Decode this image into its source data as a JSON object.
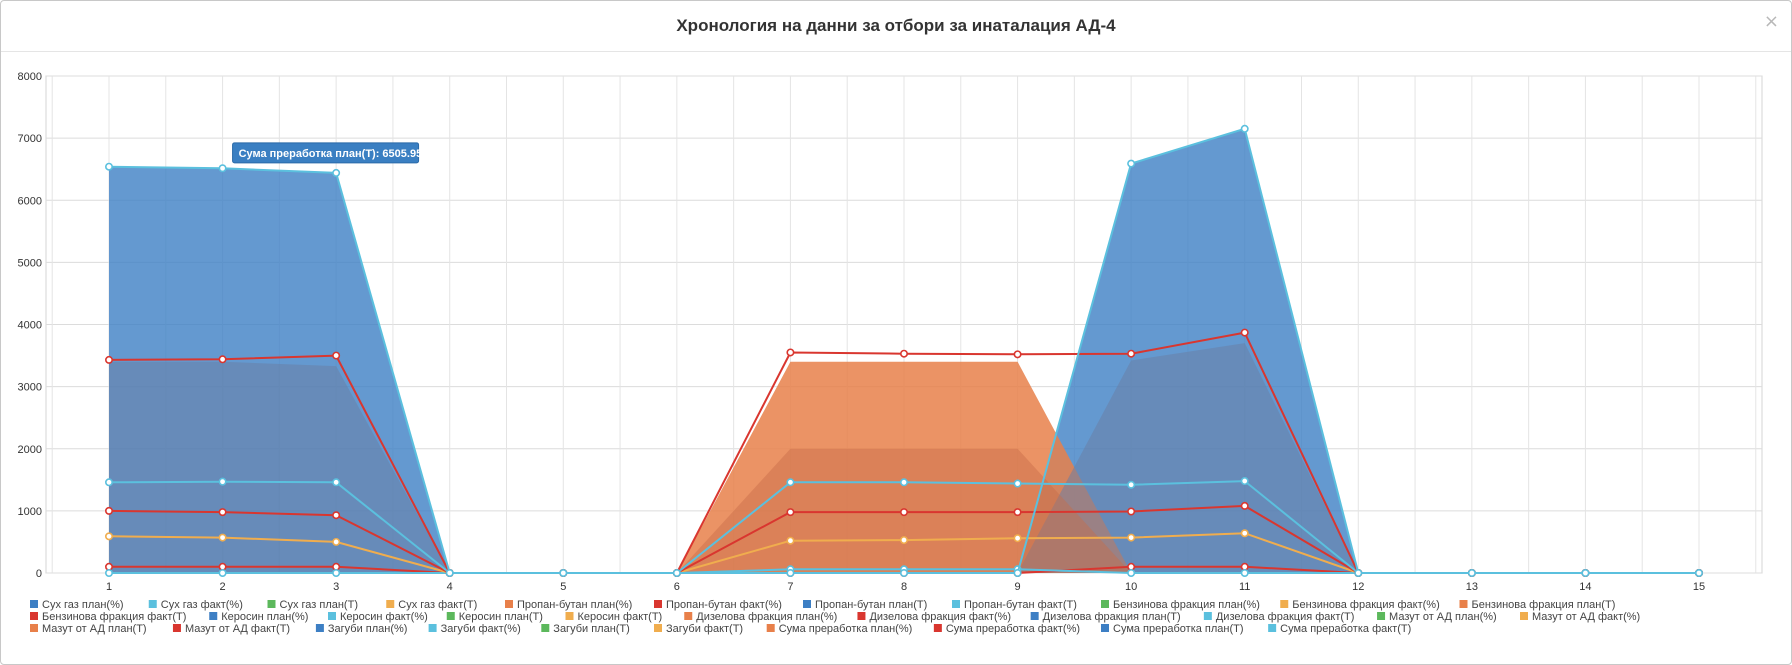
{
  "modal": {
    "title": "Хронология на данни за отбори за инаталация АД-4",
    "close_icon": "close-icon",
    "close_glyph": "×"
  },
  "tooltip": {
    "text": "Сума преработка план(Т): 6505.95",
    "series": "Сума преработка план(Т)",
    "x": 2,
    "value": 6505.95,
    "color": "#3a7fc2"
  },
  "chart_data": {
    "type": "area",
    "x": [
      1,
      2,
      3,
      4,
      5,
      6,
      7,
      8,
      9,
      10,
      11,
      12,
      13,
      14,
      15
    ],
    "xlim": [
      1,
      15
    ],
    "ylim": [
      0,
      8000
    ],
    "yticks": [
      0,
      1000,
      2000,
      3000,
      4000,
      5000,
      6000,
      7000,
      8000
    ],
    "grid": true,
    "legend_position": "bottom",
    "series": [
      {
        "name": "Сух газ план(%)",
        "color": "#3d7fc4",
        "values": [
          0,
          0,
          0,
          0,
          0,
          0,
          0,
          0,
          0,
          0,
          0,
          0,
          0,
          0,
          0
        ]
      },
      {
        "name": "Сух газ факт(%)",
        "color": "#5bc0de",
        "values": [
          0,
          0,
          0,
          0,
          0,
          0,
          0,
          0,
          0,
          0,
          0,
          0,
          0,
          0,
          0
        ]
      },
      {
        "name": "Сух газ план(Т)",
        "color": "#5cb85c",
        "values": [
          0,
          0,
          0,
          0,
          0,
          0,
          0,
          0,
          0,
          0,
          0,
          0,
          0,
          0,
          0
        ]
      },
      {
        "name": "Сух газ факт(Т)",
        "color": "#f0ad4e",
        "values": [
          0,
          0,
          0,
          0,
          0,
          0,
          0,
          0,
          0,
          0,
          0,
          0,
          0,
          0,
          0
        ]
      },
      {
        "name": "Пропан-бутан план(%)",
        "color": "#e8804a",
        "values": [
          0,
          0,
          0,
          0,
          0,
          0,
          0,
          0,
          0,
          0,
          0,
          0,
          0,
          0,
          0
        ]
      },
      {
        "name": "Пропан-бутан факт(%)",
        "color": "#d9362f",
        "values": [
          0,
          0,
          0,
          0,
          0,
          0,
          0,
          0,
          0,
          0,
          0,
          0,
          0,
          0,
          0
        ]
      },
      {
        "name": "Пропан-бутан план(Т)",
        "color": "#3d7fc4",
        "values": [
          0,
          0,
          0,
          0,
          0,
          0,
          0,
          0,
          0,
          0,
          0,
          0,
          0,
          0,
          0
        ]
      },
      {
        "name": "Пропан-бутан факт(Т)",
        "color": "#5bc0de",
        "values": [
          0,
          0,
          0,
          0,
          0,
          0,
          0,
          0,
          0,
          0,
          0,
          0,
          0,
          0,
          0
        ]
      },
      {
        "name": "Бензинова фракция план(%)",
        "color": "#5cb85c",
        "values": [
          0,
          0,
          0,
          0,
          0,
          0,
          0,
          0,
          0,
          0,
          0,
          0,
          0,
          0,
          0
        ]
      },
      {
        "name": "Бензинова фракция факт(%)",
        "color": "#f0ad4e",
        "values": [
          0,
          0,
          0,
          0,
          0,
          0,
          0,
          0,
          0,
          0,
          0,
          0,
          0,
          0,
          0
        ]
      },
      {
        "name": "Бензинова фракция план(Т)",
        "color": "#e8804a",
        "values": [
          0,
          0,
          0,
          0,
          0,
          0,
          0,
          0,
          0,
          0,
          0,
          0,
          0,
          0,
          0
        ]
      },
      {
        "name": "Бензинова фракция факт(Т)",
        "color": "#d9362f",
        "values": [
          0,
          0,
          0,
          0,
          0,
          0,
          0,
          0,
          0,
          0,
          0,
          0,
          0,
          0,
          0
        ]
      },
      {
        "name": "Керосин план(%)",
        "color": "#3d7fc4",
        "values": [
          0,
          0,
          0,
          0,
          0,
          0,
          0,
          0,
          0,
          0,
          0,
          0,
          0,
          0,
          0
        ]
      },
      {
        "name": "Керосин факт(%)",
        "color": "#5bc0de",
        "values": [
          0,
          0,
          0,
          0,
          0,
          0,
          0,
          0,
          0,
          0,
          0,
          0,
          0,
          0,
          0
        ]
      },
      {
        "name": "Керосин план(Т)",
        "color": "#5cb85c",
        "values": [
          0,
          0,
          0,
          0,
          0,
          0,
          0,
          0,
          0,
          0,
          0,
          0,
          0,
          0,
          0
        ]
      },
      {
        "name": "Керосин факт(Т)",
        "color": "#f0ad4e",
        "values": [
          0,
          0,
          0,
          0,
          0,
          0,
          0,
          0,
          0,
          0,
          0,
          0,
          0,
          0,
          0
        ]
      },
      {
        "name": "Дизелова фракция план(%)",
        "color": "#e8804a",
        "values": [
          0,
          0,
          0,
          0,
          0,
          0,
          0,
          0,
          0,
          0,
          0,
          0,
          0,
          0,
          0
        ]
      },
      {
        "name": "Дизелова фракция факт(%)",
        "color": "#d9362f",
        "values": [
          0,
          0,
          0,
          0,
          0,
          0,
          0,
          0,
          0,
          0,
          0,
          0,
          0,
          0,
          0
        ]
      },
      {
        "name": "Дизелова фракция план(Т)",
        "color": "#3d7fc4",
        "values": [
          1450,
          1450,
          1450,
          0,
          0,
          0,
          0,
          0,
          0,
          1400,
          1450,
          0,
          0,
          0,
          0
        ]
      },
      {
        "name": "Дизелова фракция факт(Т)",
        "color": "#5bc0de",
        "values": [
          1460,
          1470,
          1460,
          0,
          0,
          0,
          1460,
          1460,
          1440,
          1420,
          1480,
          0,
          0,
          0,
          0
        ]
      },
      {
        "name": "Мазут от АД план(%)",
        "color": "#5cb85c",
        "values": [
          0,
          0,
          0,
          0,
          0,
          0,
          0,
          0,
          0,
          0,
          0,
          0,
          0,
          0,
          0
        ]
      },
      {
        "name": "Мазут от АД факт(%)",
        "color": "#f0ad4e",
        "values": [
          0,
          0,
          0,
          0,
          0,
          0,
          0,
          0,
          0,
          0,
          0,
          0,
          0,
          0,
          0
        ]
      },
      {
        "name": "Мазут от АД план(Т)",
        "color": "#e8804a",
        "values": [
          0,
          0,
          0,
          0,
          0,
          0,
          2000,
          2000,
          2000,
          0,
          0,
          0,
          0,
          0,
          0
        ]
      },
      {
        "name": "Мазут от АД факт(Т)",
        "color": "#d9362f",
        "values": [
          1000,
          980,
          930,
          0,
          0,
          0,
          980,
          980,
          980,
          990,
          1080,
          0,
          0,
          0,
          0
        ]
      },
      {
        "name": "Загуби план(%)",
        "color": "#3d7fc4",
        "values": [
          0,
          0,
          0,
          0,
          0,
          0,
          0,
          0,
          0,
          0,
          0,
          0,
          0,
          0,
          0
        ]
      },
      {
        "name": "Загуби факт(%)",
        "color": "#5bc0de",
        "values": [
          0,
          0,
          0,
          0,
          0,
          0,
          60,
          60,
          60,
          0,
          0,
          0,
          0,
          0,
          0
        ]
      },
      {
        "name": "Загуби план(Т)",
        "color": "#5cb85c",
        "values": [
          0,
          0,
          0,
          0,
          0,
          0,
          0,
          0,
          0,
          0,
          0,
          0,
          0,
          0,
          0
        ]
      },
      {
        "name": "Загуби факт(Т)",
        "color": "#f0ad4e",
        "values": [
          590,
          570,
          500,
          0,
          0,
          0,
          520,
          530,
          560,
          570,
          640,
          0,
          0,
          0,
          0
        ]
      },
      {
        "name": "Сума преработка план(%)",
        "color": "#e8804a",
        "values": [
          0,
          0,
          0,
          0,
          0,
          0,
          3400,
          3400,
          3400,
          0,
          0,
          0,
          0,
          0,
          0
        ]
      },
      {
        "name": "Сума преработка факт(%)",
        "color": "#d9362f",
        "values": [
          100,
          100,
          100,
          0,
          0,
          0,
          0,
          0,
          0,
          100,
          100,
          0,
          0,
          0,
          0
        ]
      },
      {
        "name": "Сума преработка план(Т)",
        "color": "#3d7fc4",
        "values": [
          6550,
          6505.95,
          6450,
          0,
          0,
          0,
          0,
          0,
          0,
          6580,
          7150,
          0,
          0,
          0,
          0
        ]
      },
      {
        "name": "Сума преработка факт(Т)",
        "color": "#5bc0de",
        "values": [
          6540,
          6515,
          6440,
          0,
          0,
          0,
          0,
          0,
          0,
          6590,
          7150,
          0,
          0,
          0,
          0
        ]
      }
    ],
    "red_line": {
      "values": [
        3430,
        3440,
        3500,
        0,
        0,
        0,
        3550,
        3530,
        3520,
        3530,
        3870,
        0,
        0,
        0,
        0
      ]
    },
    "area_layers": [
      {
        "color": "#3d7fc4",
        "opacity": 0.8,
        "values": [
          6550,
          6505.95,
          6450,
          0,
          0,
          0,
          0,
          0,
          0,
          6580,
          7150,
          0,
          0,
          0,
          0
        ]
      },
      {
        "color": "#e8804a",
        "opacity": 0.85,
        "values": [
          0,
          0,
          0,
          0,
          0,
          0,
          3400,
          3400,
          3400,
          0,
          0,
          0,
          0,
          0,
          0
        ]
      },
      {
        "color": "#6a7fa6",
        "opacity": 0.55,
        "values": [
          3400,
          3400,
          3330,
          0,
          0,
          0,
          0,
          0,
          0,
          3420,
          3700,
          0,
          0,
          0,
          0
        ]
      },
      {
        "color": "#c86d4a",
        "opacity": 0.45,
        "values": [
          0,
          0,
          0,
          0,
          0,
          0,
          2000,
          2000,
          2000,
          0,
          0,
          0,
          0,
          0,
          0
        ]
      }
    ]
  }
}
